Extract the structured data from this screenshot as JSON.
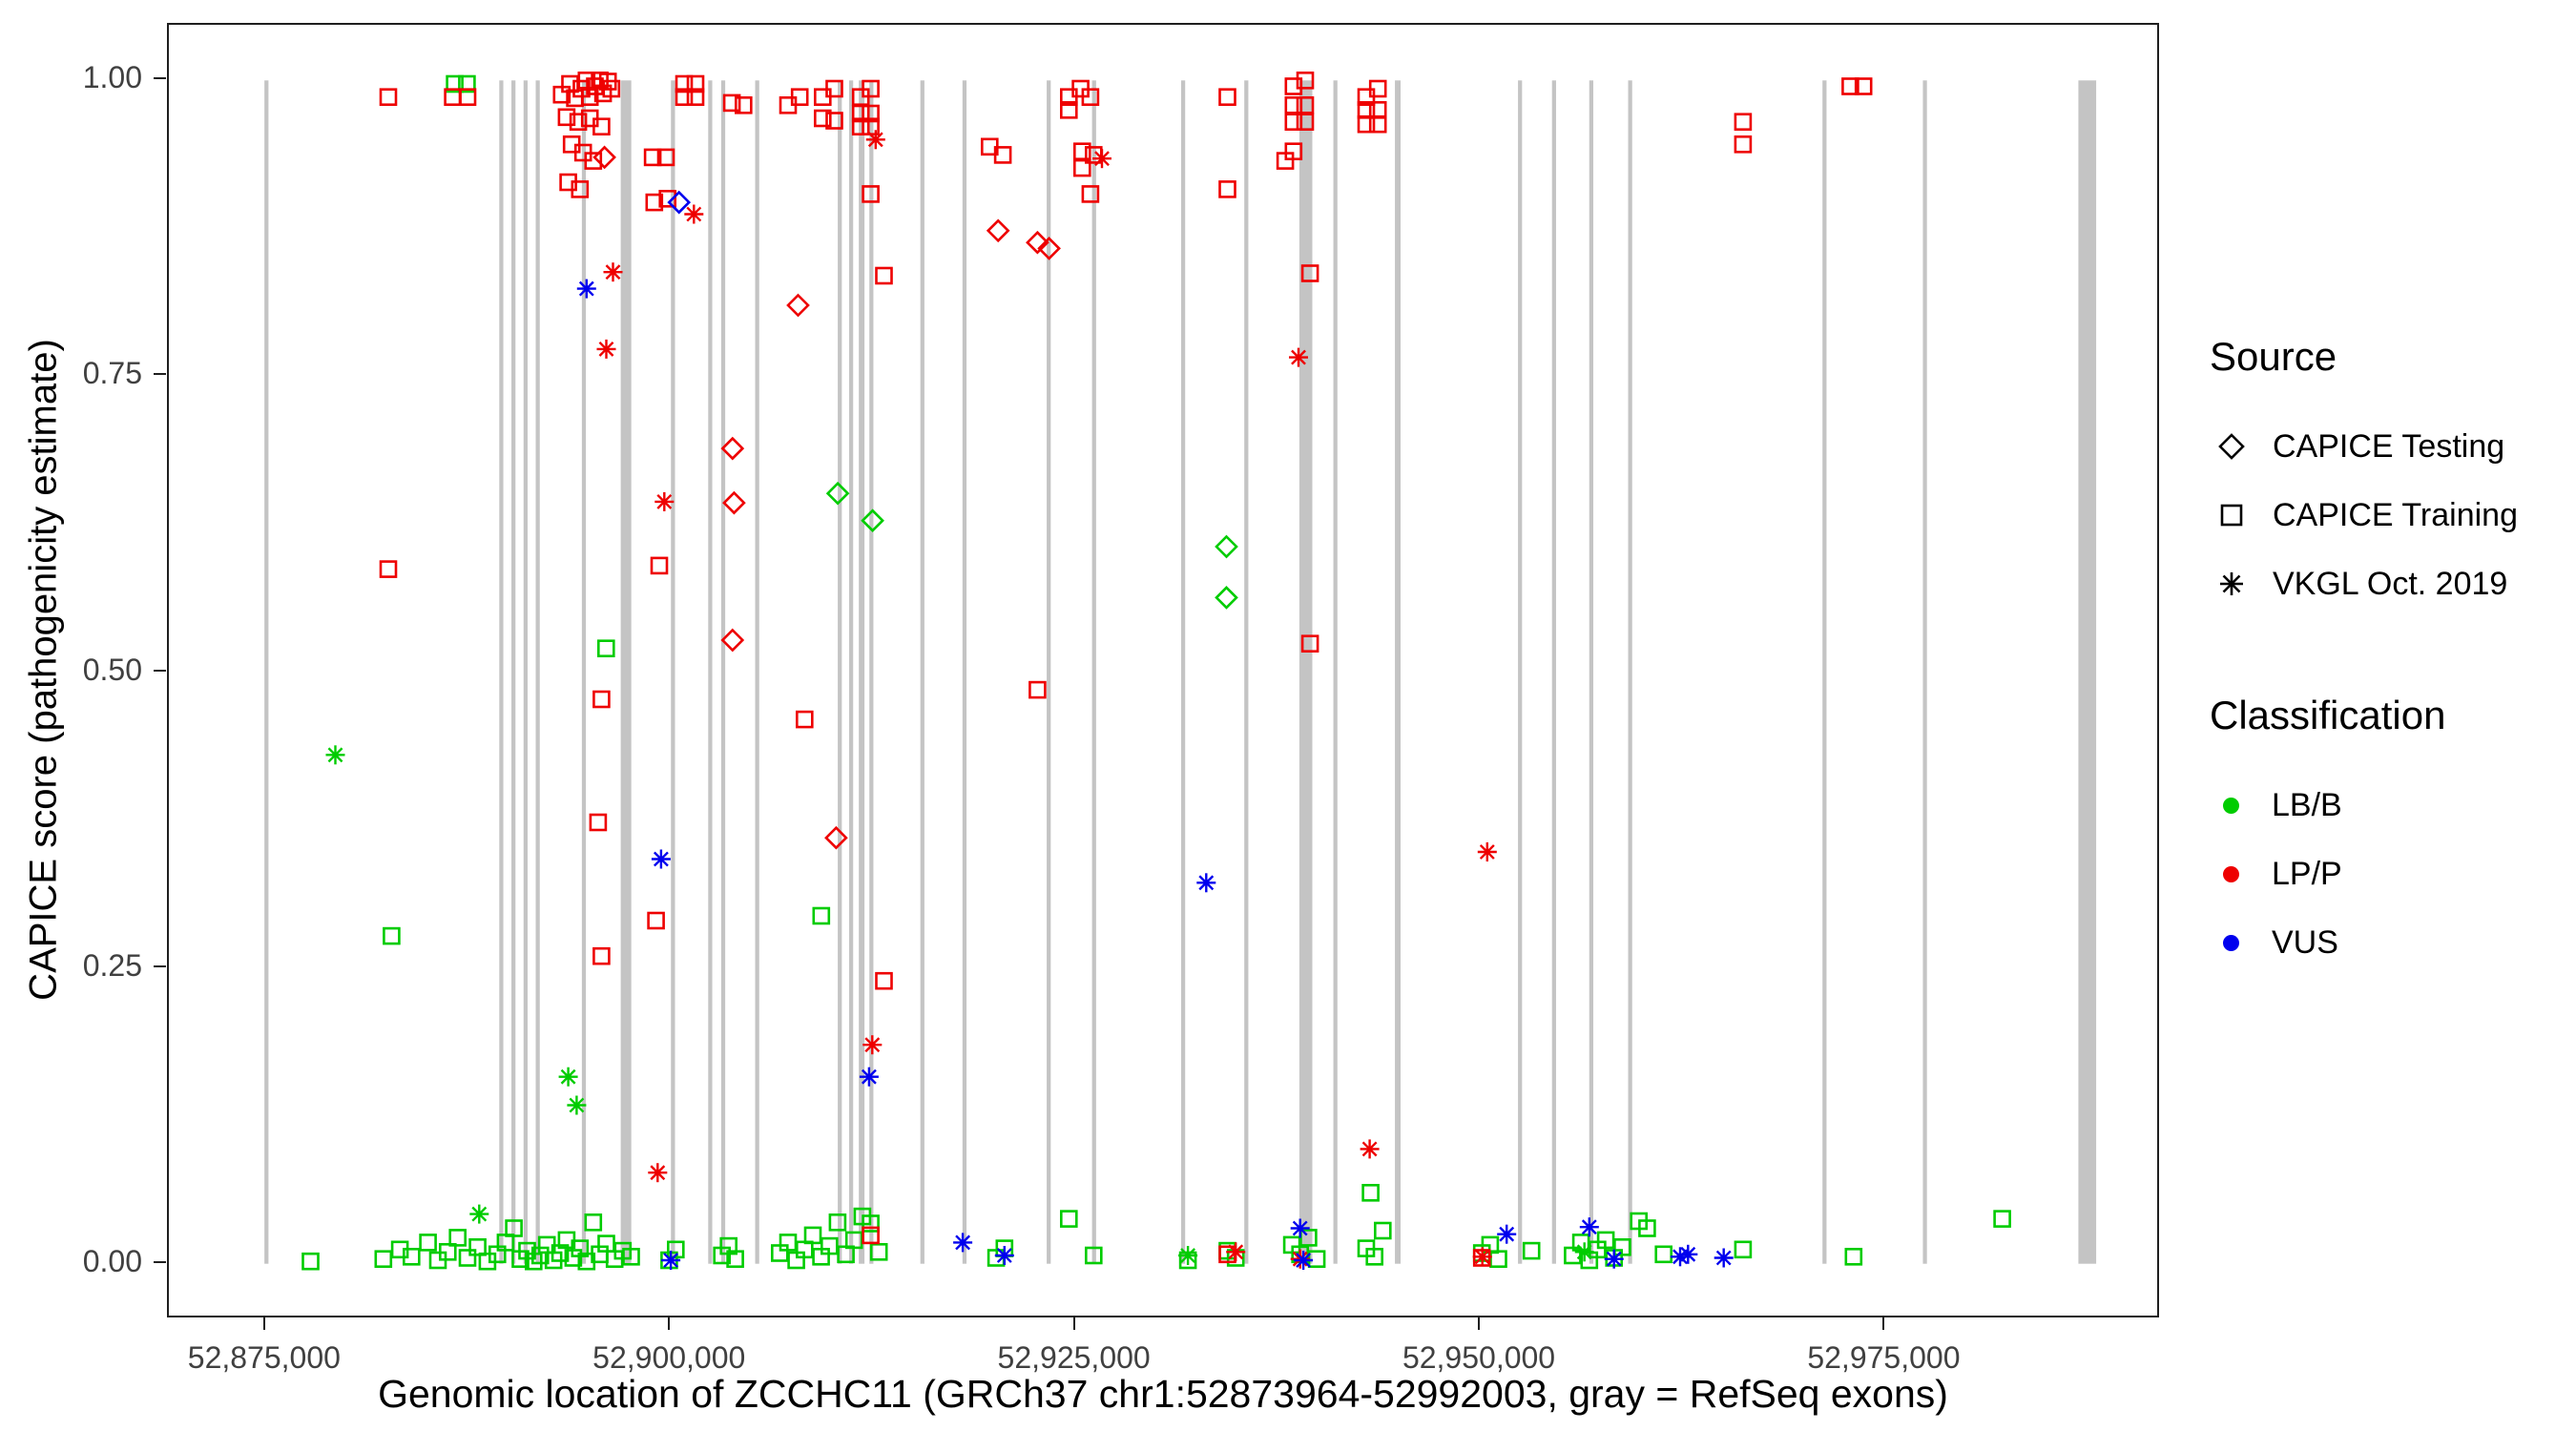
{
  "legend": {
    "source_title": "Source",
    "source_items": [
      {
        "label": "CAPICE Testing",
        "shape": "diamond"
      },
      {
        "label": "CAPICE Training",
        "shape": "square"
      },
      {
        "label": "VKGL Oct. 2019",
        "shape": "asterisk"
      }
    ],
    "classification_title": "Classification",
    "classification_items": [
      {
        "label": "LB/B",
        "color": "#00cc00"
      },
      {
        "label": "LP/P",
        "color": "#ee0000"
      },
      {
        "label": "VUS",
        "color": "#0000ee"
      }
    ]
  },
  "chart_data": {
    "type": "scatter",
    "title": "",
    "x_axis": {
      "label": "Genomic location of ZCCHC11 (GRCh37 chr1:52873964-52992003, gray = RefSeq exons)",
      "range": [
        52869000,
        52992000
      ],
      "ticks": [
        52875000,
        52900000,
        52925000,
        52950000,
        52975000
      ],
      "tick_labels": [
        "52,875,000",
        "52,900,000",
        "52,925,000",
        "52,950,000",
        "52,975,000"
      ]
    },
    "y_axis": {
      "label": "CAPICE score (pathogenicity estimate)",
      "range": [
        -0.047,
        1.047
      ],
      "ticks": [
        0,
        0.25,
        0.5,
        0.75,
        1.0
      ],
      "tick_labels": [
        "0.00",
        "0.25",
        "0.50",
        "0.75",
        "1.00"
      ]
    },
    "exon_color": "#c4c4c4",
    "exons": [
      [
        52874900,
        52875150
      ],
      [
        52889400,
        52889650
      ],
      [
        52890150,
        52890400
      ],
      [
        52890900,
        52891150
      ],
      [
        52891650,
        52891900
      ],
      [
        52894500,
        52894750
      ],
      [
        52896900,
        52897550
      ],
      [
        52900000,
        52900250
      ],
      [
        52902300,
        52902550
      ],
      [
        52903100,
        52903350
      ],
      [
        52905200,
        52905450
      ],
      [
        52910300,
        52910550
      ],
      [
        52911000,
        52911250
      ],
      [
        52911600,
        52911950
      ],
      [
        52912250,
        52912500
      ],
      [
        52915400,
        52915650
      ],
      [
        52918000,
        52918250
      ],
      [
        52923200,
        52923450
      ],
      [
        52926000,
        52926250
      ],
      [
        52931500,
        52931750
      ],
      [
        52935400,
        52935650
      ],
      [
        52938800,
        52939600
      ],
      [
        52940900,
        52941150
      ],
      [
        52944700,
        52945050
      ],
      [
        52952300,
        52952550
      ],
      [
        52954400,
        52954650
      ],
      [
        52956700,
        52956950
      ],
      [
        52959100,
        52959350
      ],
      [
        52971100,
        52971350
      ],
      [
        52977300,
        52977550
      ],
      [
        52986900,
        52988000
      ]
    ],
    "series": [
      {
        "name": "CAPICE Training - LB/B",
        "source": "CAPICE Training",
        "classification": "LB/B",
        "shape": "square",
        "color": "#00cc00",
        "points": [
          [
            52886650,
            0.997
          ],
          [
            52887400,
            0.997
          ],
          [
            52896000,
            0.52
          ],
          [
            52909280,
            0.294
          ],
          [
            52882750,
            0.277
          ],
          [
            52943200,
            0.06
          ],
          [
            52877750,
            0.002
          ],
          [
            52882240,
            0.004
          ],
          [
            52883260,
            0.012
          ],
          [
            52883980,
            0.006
          ],
          [
            52885000,
            0.018
          ],
          [
            52885610,
            0.003
          ],
          [
            52886220,
            0.01
          ],
          [
            52886830,
            0.022
          ],
          [
            52887440,
            0.005
          ],
          [
            52888060,
            0.014
          ],
          [
            52888670,
            0.002
          ],
          [
            52889280,
            0.008
          ],
          [
            52889790,
            0.018
          ],
          [
            52890300,
            0.03
          ],
          [
            52890710,
            0.004
          ],
          [
            52891120,
            0.011
          ],
          [
            52891520,
            0.002
          ],
          [
            52891930,
            0.007
          ],
          [
            52892340,
            0.016
          ],
          [
            52892750,
            0.003
          ],
          [
            52893160,
            0.009
          ],
          [
            52893560,
            0.02
          ],
          [
            52893970,
            0.005
          ],
          [
            52894380,
            0.013
          ],
          [
            52894790,
            0.002
          ],
          [
            52895200,
            0.035
          ],
          [
            52895600,
            0.008
          ],
          [
            52896010,
            0.017
          ],
          [
            52896520,
            0.004
          ],
          [
            52897030,
            0.011
          ],
          [
            52897540,
            0.006
          ],
          [
            52899890,
            0.003
          ],
          [
            52900300,
            0.012
          ],
          [
            52903150,
            0.007
          ],
          [
            52903560,
            0.015
          ],
          [
            52903970,
            0.004
          ],
          [
            52906720,
            0.009
          ],
          [
            52907230,
            0.018
          ],
          [
            52907740,
            0.003
          ],
          [
            52908250,
            0.012
          ],
          [
            52908760,
            0.024
          ],
          [
            52909270,
            0.006
          ],
          [
            52909780,
            0.015
          ],
          [
            52910290,
            0.035
          ],
          [
            52910800,
            0.008
          ],
          [
            52911310,
            0.02
          ],
          [
            52911820,
            0.04
          ],
          [
            52912330,
            0.034
          ],
          [
            52912840,
            0.01
          ],
          [
            52920080,
            0.005
          ],
          [
            52920590,
            0.013
          ],
          [
            52924570,
            0.038
          ],
          [
            52926100,
            0.007
          ],
          [
            52931920,
            0.003
          ],
          [
            52934360,
            0.011
          ],
          [
            52934870,
            0.005
          ],
          [
            52938340,
            0.016
          ],
          [
            52938850,
            0.008
          ],
          [
            52939360,
            0.022
          ],
          [
            52939870,
            0.004
          ],
          [
            52942930,
            0.013
          ],
          [
            52943440,
            0.006
          ],
          [
            52943950,
            0.028
          ],
          [
            52950070,
            0.009
          ],
          [
            52950580,
            0.016
          ],
          [
            52951090,
            0.004
          ],
          [
            52953130,
            0.011
          ],
          [
            52955680,
            0.007
          ],
          [
            52956190,
            0.018
          ],
          [
            52956700,
            0.003
          ],
          [
            52957210,
            0.012
          ],
          [
            52957720,
            0.02
          ],
          [
            52958230,
            0.005
          ],
          [
            52958740,
            0.014
          ],
          [
            52959760,
            0.036
          ],
          [
            52960270,
            0.03
          ],
          [
            52961290,
            0.008
          ],
          [
            52966190,
            0.012
          ],
          [
            52973020,
            0.006
          ],
          [
            52982200,
            0.038
          ]
        ]
      },
      {
        "name": "CAPICE Training - LP/P",
        "source": "CAPICE Training",
        "classification": "LP/P",
        "shape": "square",
        "color": "#ee0000",
        "points": [
          [
            52882550,
            0.986
          ],
          [
            52886530,
            0.986
          ],
          [
            52887440,
            0.986
          ],
          [
            52893260,
            0.988
          ],
          [
            52893770,
            0.997
          ],
          [
            52894070,
            0.985
          ],
          [
            52894480,
            0.993
          ],
          [
            52894790,
            1.0
          ],
          [
            52894990,
            0.986
          ],
          [
            52895300,
            0.995
          ],
          [
            52895600,
            1.0
          ],
          [
            52895810,
            0.989
          ],
          [
            52896110,
            0.999
          ],
          [
            52896320,
            0.993
          ],
          [
            52893560,
            0.969
          ],
          [
            52894280,
            0.965
          ],
          [
            52894990,
            0.968
          ],
          [
            52895710,
            0.961
          ],
          [
            52893870,
            0.946
          ],
          [
            52894580,
            0.939
          ],
          [
            52895200,
            0.932
          ],
          [
            52893660,
            0.914
          ],
          [
            52894380,
            0.908
          ],
          [
            52898870,
            0.935
          ],
          [
            52899690,
            0.935
          ],
          [
            52898970,
            0.897
          ],
          [
            52899790,
            0.9
          ],
          [
            52900810,
            0.997
          ],
          [
            52901520,
            0.997
          ],
          [
            52900810,
            0.986
          ],
          [
            52901520,
            0.986
          ],
          [
            52903760,
            0.981
          ],
          [
            52904480,
            0.979
          ],
          [
            52907230,
            0.979
          ],
          [
            52907950,
            0.986
          ],
          [
            52909370,
            0.986
          ],
          [
            52910090,
            0.993
          ],
          [
            52909370,
            0.968
          ],
          [
            52910090,
            0.966
          ],
          [
            52911720,
            0.986
          ],
          [
            52912330,
            0.993
          ],
          [
            52911720,
            0.972
          ],
          [
            52912330,
            0.972
          ],
          [
            52911720,
            0.961
          ],
          [
            52912330,
            0.961
          ],
          [
            52912330,
            0.904
          ],
          [
            52913150,
            0.835
          ],
          [
            52919680,
            0.944
          ],
          [
            52920490,
            0.937
          ],
          [
            52924570,
            0.986
          ],
          [
            52925290,
            0.993
          ],
          [
            52925900,
            0.986
          ],
          [
            52924570,
            0.975
          ],
          [
            52925390,
            0.94
          ],
          [
            52926100,
            0.937
          ],
          [
            52925390,
            0.926
          ],
          [
            52925900,
            0.904
          ],
          [
            52934360,
            0.986
          ],
          [
            52934360,
            0.908
          ],
          [
            52938440,
            0.995
          ],
          [
            52939160,
            1.0
          ],
          [
            52938440,
            0.979
          ],
          [
            52939160,
            0.979
          ],
          [
            52938440,
            0.965
          ],
          [
            52939160,
            0.965
          ],
          [
            52938440,
            0.94
          ],
          [
            52937930,
            0.932
          ],
          [
            52939460,
            0.837
          ],
          [
            52939460,
            0.524
          ],
          [
            52942930,
            0.986
          ],
          [
            52943650,
            0.993
          ],
          [
            52942930,
            0.975
          ],
          [
            52943650,
            0.975
          ],
          [
            52942930,
            0.963
          ],
          [
            52943650,
            0.963
          ],
          [
            52966190,
            0.965
          ],
          [
            52966190,
            0.946
          ],
          [
            52972820,
            0.995
          ],
          [
            52973630,
            0.995
          ],
          [
            52882550,
            0.587
          ],
          [
            52895710,
            0.477
          ],
          [
            52895500,
            0.373
          ],
          [
            52895710,
            0.26
          ],
          [
            52899280,
            0.59
          ],
          [
            52899080,
            0.29
          ],
          [
            52908250,
            0.46
          ],
          [
            52913150,
            0.239
          ],
          [
            52922630,
            0.485
          ],
          [
            52934360,
            0.008
          ],
          [
            52912330,
            0.024
          ],
          [
            52950070,
            0.005
          ]
        ]
      },
      {
        "name": "CAPICE Testing - LB/B",
        "source": "CAPICE Testing",
        "classification": "LB/B",
        "shape": "diamond",
        "color": "#00cc00",
        "points": [
          [
            52910300,
            0.651
          ],
          [
            52912450,
            0.628
          ],
          [
            52934300,
            0.606
          ],
          [
            52934300,
            0.563
          ]
        ]
      },
      {
        "name": "CAPICE Testing - LP/P",
        "source": "CAPICE Testing",
        "classification": "LP/P",
        "shape": "diamond",
        "color": "#ee0000",
        "points": [
          [
            52895900,
            0.935
          ],
          [
            52907850,
            0.81
          ],
          [
            52903800,
            0.689
          ],
          [
            52903900,
            0.643
          ],
          [
            52903800,
            0.527
          ],
          [
            52910200,
            0.36
          ],
          [
            52920200,
            0.873
          ],
          [
            52922630,
            0.863
          ],
          [
            52923350,
            0.858
          ]
        ]
      },
      {
        "name": "CAPICE Testing - VUS",
        "source": "CAPICE Testing",
        "classification": "VUS",
        "shape": "diamond",
        "color": "#0000ee",
        "points": [
          [
            52900500,
            0.897
          ]
        ]
      },
      {
        "name": "VKGL Oct. 2019 - LB/B",
        "source": "VKGL Oct. 2019",
        "classification": "LB/B",
        "shape": "asterisk",
        "color": "#00cc00",
        "points": [
          [
            52879280,
            0.43
          ],
          [
            52893660,
            0.158
          ],
          [
            52894180,
            0.134
          ],
          [
            52888160,
            0.042
          ],
          [
            52931920,
            0.007
          ],
          [
            52956400,
            0.01
          ]
        ]
      },
      {
        "name": "VKGL Oct. 2019 - LP/P",
        "source": "VKGL Oct. 2019",
        "classification": "LP/P",
        "shape": "asterisk",
        "color": "#ee0000",
        "points": [
          [
            52896420,
            0.838
          ],
          [
            52896010,
            0.773
          ],
          [
            52899590,
            0.644
          ],
          [
            52901420,
            0.887
          ],
          [
            52912640,
            0.95
          ],
          [
            52912430,
            0.185
          ],
          [
            52926610,
            0.934
          ],
          [
            52938750,
            0.766
          ],
          [
            52950400,
            0.348
          ],
          [
            52943140,
            0.097
          ],
          [
            52899180,
            0.077
          ],
          [
            52934870,
            0.01
          ],
          [
            52938850,
            0.004
          ],
          [
            52950100,
            0.006
          ]
        ]
      },
      {
        "name": "VKGL Oct. 2019 - VUS",
        "source": "VKGL Oct. 2019",
        "classification": "VUS",
        "shape": "asterisk",
        "color": "#0000ee",
        "points": [
          [
            52894790,
            0.824
          ],
          [
            52899390,
            0.342
          ],
          [
            52912230,
            0.158
          ],
          [
            52933050,
            0.322
          ],
          [
            52918020,
            0.018
          ],
          [
            52920590,
            0.007
          ],
          [
            52938850,
            0.03
          ],
          [
            52939050,
            0.003
          ],
          [
            52956700,
            0.031
          ],
          [
            52958230,
            0.004
          ],
          [
            52962310,
            0.006
          ],
          [
            52962800,
            0.008
          ],
          [
            52899990,
            0.003
          ],
          [
            52951600,
            0.025
          ],
          [
            52965000,
            0.005
          ]
        ]
      }
    ]
  }
}
